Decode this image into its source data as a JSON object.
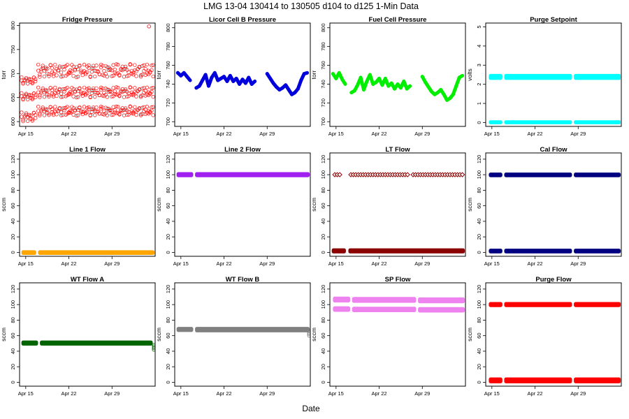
{
  "title": "LMG   13-04    130414 to 130505    d104 to d125   1-Min Data",
  "xlabel": "Date",
  "x_ticks": [
    "Apr 15",
    "Apr 22",
    "Apr 29"
  ],
  "chart_data": [
    {
      "type": "scatter",
      "title": "Fridge Pressure",
      "ylabel": "torr",
      "ylim": [
        590,
        805
      ],
      "yticks": [
        600,
        650,
        700,
        750,
        800
      ],
      "xlim": [
        104,
        126
      ],
      "series": [
        {
          "color": "#ff0000",
          "marker": "open-circle",
          "bands": [
            [
              104.2,
              106.7,
              678,
              693
            ],
            [
              106.9,
              125.8,
              692,
              720
            ],
            [
              104.2,
              106.7,
              645,
              660
            ],
            [
              106.9,
              125.8,
              650,
              672
            ],
            [
              104.2,
              106.7,
              600,
              620
            ],
            [
              106.9,
              125.8,
              612,
              632
            ]
          ]
        },
        {
          "color": "#ff0000",
          "marker": "open-circle",
          "points": [
            [
              125.0,
              798
            ]
          ]
        }
      ]
    },
    {
      "type": "scatter",
      "title": "Licor Cell B Pressure",
      "ylabel": "torr",
      "ylim": [
        695,
        805
      ],
      "yticks": [
        700,
        720,
        740,
        760,
        780,
        800
      ],
      "xlim": [
        104,
        126
      ],
      "series": [
        {
          "color": "#0000dd",
          "marker": "filled-circle",
          "x": [
            104.5,
            105.0,
            105.5,
            106.0,
            106.5,
            107.0,
            107.5,
            108.0,
            108.5,
            109.0,
            109.5,
            110.0,
            110.5,
            111.0,
            111.5,
            112.0,
            112.5,
            113.0,
            113.5,
            114.0,
            114.5,
            115.0,
            115.5,
            116.0,
            116.5,
            117.0,
            117.5,
            118.0,
            119.0,
            119.5,
            120.0,
            120.5,
            121.0,
            121.5,
            122.0,
            122.5,
            123.0,
            123.5,
            124.0,
            124.5,
            125.0,
            125.5
          ],
          "y": [
            752,
            749,
            752,
            748,
            744,
            null,
            736,
            738,
            744,
            750,
            738,
            747,
            752,
            744,
            746,
            748,
            743,
            749,
            743,
            746,
            740,
            745,
            741,
            747,
            740,
            743,
            null,
            null,
            751,
            746,
            741,
            737,
            734,
            736,
            739,
            734,
            729,
            731,
            735,
            744,
            751,
            752
          ]
        }
      ]
    },
    {
      "type": "scatter",
      "title": "Fuel Cell Pressure",
      "ylabel": "torr",
      "ylim": [
        695,
        805
      ],
      "yticks": [
        700,
        720,
        740,
        760,
        780,
        800
      ],
      "xlim": [
        104,
        126
      ],
      "series": [
        {
          "color": "#00ee00",
          "marker": "filled-circle",
          "x": [
            104.5,
            105.0,
            105.5,
            106.0,
            106.5,
            107.0,
            107.5,
            108.0,
            108.5,
            109.0,
            109.5,
            110.0,
            110.5,
            111.0,
            111.5,
            112.0,
            112.5,
            113.0,
            113.5,
            114.0,
            114.5,
            115.0,
            115.5,
            116.0,
            116.5,
            117.0,
            117.5,
            118.0,
            119.0,
            119.5,
            120.0,
            120.5,
            121.0,
            121.5,
            122.0,
            122.5,
            123.0,
            123.5,
            124.0,
            124.5,
            125.0,
            125.5
          ],
          "y": [
            751,
            746,
            752,
            745,
            740,
            null,
            731,
            733,
            739,
            747,
            734,
            743,
            750,
            740,
            742,
            746,
            739,
            746,
            738,
            741,
            735,
            740,
            736,
            743,
            735,
            738,
            null,
            null,
            748,
            742,
            737,
            732,
            729,
            731,
            734,
            729,
            723,
            725,
            729,
            738,
            747,
            749
          ]
        }
      ]
    },
    {
      "type": "scatter",
      "title": "Purge Setpoint",
      "ylabel": "volts",
      "ylim": [
        -0.2,
        5.2
      ],
      "yticks": [
        0,
        1,
        2,
        3,
        4,
        5
      ],
      "xlim": [
        104,
        126
      ],
      "series": [
        {
          "color": "#00ffff",
          "marker": "filled-circle",
          "bands": [
            [
              104.5,
              106.7,
              2.32,
              2.45
            ],
            [
              107.0,
              118.0,
              2.32,
              2.45
            ],
            [
              118.3,
              125.9,
              2.32,
              2.45
            ],
            [
              104.5,
              106.7,
              0,
              0.03
            ],
            [
              107.0,
              118.0,
              0,
              0.03
            ],
            [
              118.3,
              125.9,
              0,
              0.03
            ]
          ]
        }
      ]
    },
    {
      "type": "scatter",
      "title": "Line 1 Flow",
      "ylabel": "sccm",
      "ylim": [
        -5,
        128
      ],
      "yticks": [
        0,
        20,
        40,
        60,
        80,
        100,
        120
      ],
      "xlim": [
        104,
        126
      ],
      "series": [
        {
          "color": "#ffa500",
          "marker": "filled-circle",
          "bands": [
            [
              104.3,
              106.7,
              -1,
              0.5
            ],
            [
              107.0,
              125.9,
              -1,
              0.5
            ]
          ]
        }
      ]
    },
    {
      "type": "scatter",
      "title": "Line 2 Flow",
      "ylabel": "sccm",
      "ylim": [
        -5,
        128
      ],
      "yticks": [
        0,
        20,
        40,
        60,
        80,
        100,
        120
      ],
      "xlim": [
        104,
        126
      ],
      "series": [
        {
          "color": "#a020f0",
          "marker": "filled-circle",
          "bands": [
            [
              104.3,
              107.0,
              99,
              101
            ],
            [
              107.3,
              125.9,
              99,
              101
            ]
          ]
        }
      ]
    },
    {
      "type": "scatter",
      "title": "LT Flow",
      "ylabel": "sccm",
      "ylim": [
        -5,
        128
      ],
      "yticks": [
        0,
        20,
        40,
        60,
        80,
        100,
        120
      ],
      "xlim": [
        104,
        126
      ],
      "series": [
        {
          "color": "#8b0000",
          "marker": "diamond-open",
          "points": [
            [
              104.8,
              100
            ],
            [
              105.2,
              100
            ],
            [
              105.6,
              100
            ],
            [
              107.4,
              100
            ],
            [
              107.8,
              100
            ],
            [
              108.2,
              100
            ],
            [
              108.6,
              100
            ],
            [
              109.0,
              100
            ],
            [
              109.4,
              100
            ],
            [
              109.8,
              100
            ],
            [
              110.2,
              100
            ],
            [
              110.6,
              100
            ],
            [
              111.0,
              100
            ],
            [
              111.4,
              100
            ],
            [
              111.8,
              100
            ],
            [
              112.2,
              100
            ],
            [
              112.6,
              100
            ],
            [
              113.0,
              100
            ],
            [
              113.4,
              100
            ],
            [
              113.8,
              100
            ],
            [
              114.2,
              100
            ],
            [
              114.6,
              100
            ],
            [
              115.0,
              100
            ],
            [
              115.4,
              100
            ],
            [
              115.8,
              100
            ],
            [
              116.2,
              100
            ],
            [
              116.6,
              100
            ],
            [
              117.5,
              100
            ],
            [
              117.9,
              100
            ],
            [
              118.3,
              100
            ],
            [
              118.7,
              100
            ],
            [
              119.1,
              100
            ],
            [
              119.5,
              100
            ],
            [
              119.9,
              100
            ],
            [
              120.3,
              100
            ],
            [
              120.7,
              100
            ],
            [
              121.1,
              100
            ],
            [
              121.5,
              100
            ],
            [
              121.9,
              100
            ],
            [
              122.3,
              100
            ],
            [
              122.7,
              100
            ],
            [
              123.1,
              100
            ],
            [
              123.5,
              100
            ],
            [
              123.9,
              100
            ],
            [
              124.3,
              100
            ],
            [
              124.7,
              100
            ],
            [
              125.1,
              100
            ],
            [
              125.5,
              100
            ]
          ]
        },
        {
          "color": "#8b0000",
          "marker": "filled-circle",
          "bands": [
            [
              104.3,
              106.6,
              1,
              3
            ],
            [
              107.0,
              125.9,
              1,
              3
            ]
          ]
        }
      ]
    },
    {
      "type": "scatter",
      "title": "Cal Flow",
      "ylabel": "sccm",
      "ylim": [
        -5,
        128
      ],
      "yticks": [
        0,
        20,
        40,
        60,
        80,
        100,
        120
      ],
      "xlim": [
        104,
        126
      ],
      "series": [
        {
          "color": "#000080",
          "marker": "filled-circle",
          "bands": [
            [
              104.5,
              106.7,
              99,
              100.5
            ],
            [
              107.0,
              118.0,
              99,
              100.5
            ],
            [
              118.3,
              125.9,
              99,
              100.5
            ],
            [
              104.5,
              106.7,
              1,
              2.5
            ],
            [
              107.0,
              118.0,
              1,
              2.5
            ],
            [
              118.3,
              125.9,
              1,
              2.5
            ]
          ]
        }
      ]
    },
    {
      "type": "scatter",
      "title": "WT Flow A",
      "ylabel": "sccm",
      "ylim": [
        -5,
        128
      ],
      "yticks": [
        0,
        20,
        40,
        60,
        80,
        100,
        120
      ],
      "xlim": [
        104,
        126
      ],
      "series": [
        {
          "color": "#006400",
          "marker": "filled-circle",
          "bands": [
            [
              104.3,
              107.0,
              49.5,
              51.5
            ],
            [
              107.3,
              125.6,
              49.5,
              51.5
            ]
          ]
        },
        {
          "color": "#006400",
          "marker": "open-circle",
          "points": [
            [
              125.8,
              46
            ],
            [
              125.8,
              44
            ],
            [
              125.8,
              42
            ],
            [
              125.8,
              48
            ]
          ]
        }
      ]
    },
    {
      "type": "scatter",
      "title": "WT Flow B",
      "ylabel": "sccm",
      "ylim": [
        -5,
        128
      ],
      "yticks": [
        0,
        20,
        40,
        60,
        80,
        100,
        120
      ],
      "xlim": [
        104,
        126
      ],
      "series": [
        {
          "color": "#808080",
          "marker": "filled-circle",
          "bands": [
            [
              104.3,
              107.0,
              67,
              69
            ],
            [
              107.3,
              125.9,
              66.5,
              69
            ]
          ]
        },
        {
          "color": "#808080",
          "marker": "open-circle",
          "points": [
            [
              125.8,
              64
            ],
            [
              125.8,
              62
            ],
            [
              125.8,
              60
            ],
            [
              125.8,
              66
            ]
          ]
        }
      ]
    },
    {
      "type": "scatter",
      "title": "SP Flow",
      "ylabel": "sccm",
      "ylim": [
        -5,
        128
      ],
      "yticks": [
        0,
        20,
        40,
        60,
        80,
        100,
        120
      ],
      "xlim": [
        104,
        126
      ],
      "series": [
        {
          "color": "#ee82ee",
          "marker": "filled-circle",
          "bands": [
            [
              104.5,
              107.3,
              105,
              108
            ],
            [
              107.6,
              118.0,
              104.5,
              107.5
            ],
            [
              118.3,
              125.9,
              104,
              107
            ],
            [
              104.5,
              107.3,
              93,
              95.5
            ],
            [
              107.6,
              118.0,
              92.5,
              95
            ],
            [
              118.3,
              125.9,
              92,
              94.5
            ]
          ]
        }
      ]
    },
    {
      "type": "scatter",
      "title": "Purge Flow",
      "ylabel": "sccm",
      "ylim": [
        -5,
        128
      ],
      "yticks": [
        0,
        20,
        40,
        60,
        80,
        100,
        120
      ],
      "xlim": [
        104,
        126
      ],
      "series": [
        {
          "color": "#ff0000",
          "marker": "filled-circle",
          "bands": [
            [
              104.5,
              106.7,
              99,
              101
            ],
            [
              107.0,
              118.0,
              99,
              101
            ],
            [
              118.3,
              125.9,
              99,
              101
            ],
            [
              104.5,
              106.7,
              1,
              4
            ],
            [
              107.0,
              118.0,
              1,
              4
            ],
            [
              118.3,
              125.9,
              1,
              4
            ]
          ]
        }
      ]
    }
  ]
}
